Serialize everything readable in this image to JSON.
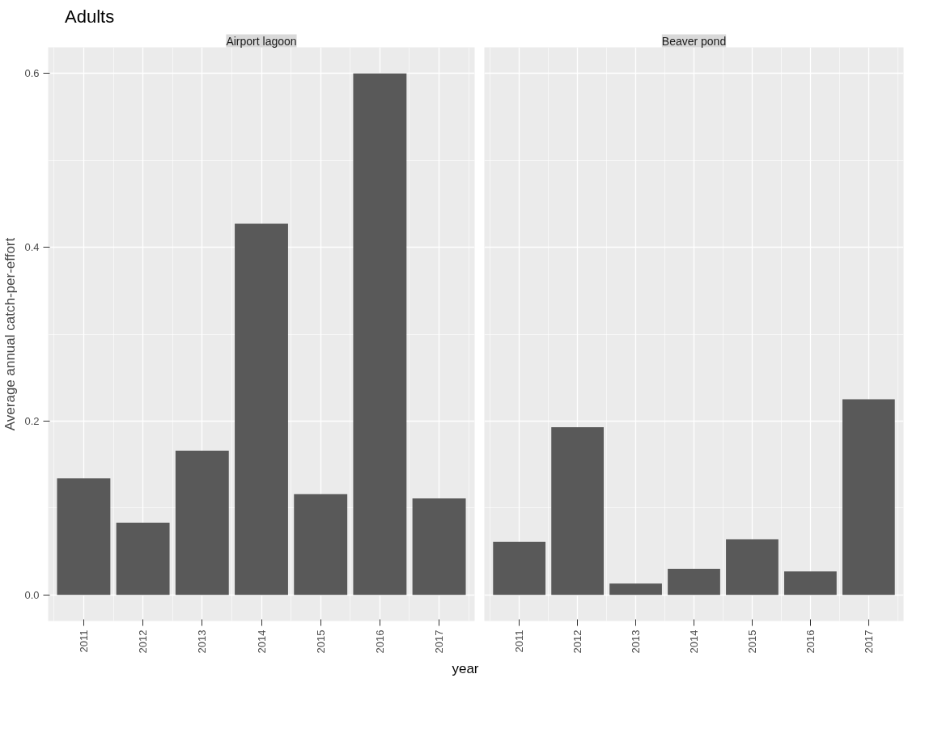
{
  "chart_data": [
    {
      "type": "bar",
      "title": "Adults",
      "subtitle": "Airport lagoon",
      "xlabel": "year",
      "ylabel": "Average annual catch-per-effort",
      "categories": [
        "2011",
        "2012",
        "2013",
        "2014",
        "2015",
        "2016",
        "2017"
      ],
      "values": [
        0.134,
        0.083,
        0.166,
        0.427,
        0.116,
        0.6,
        0.111
      ],
      "color": "#595959",
      "ylim": [
        -0.03,
        0.63
      ],
      "yticks": [
        {
          "value": 0,
          "label": "0.0"
        },
        {
          "value": 0.2,
          "label": "0.2"
        },
        {
          "value": 0.4,
          "label": "0.4"
        },
        {
          "value": 0.6,
          "label": "0.6"
        }
      ],
      "grid": true
    },
    {
      "type": "bar",
      "subtitle": "Beaver pond",
      "categories": [
        "2011",
        "2012",
        "2013",
        "2014",
        "2015",
        "2016",
        "2017"
      ],
      "values": [
        0.061,
        0.193,
        0.013,
        0.03,
        0.064,
        0.027,
        0.225
      ],
      "color": "#595959",
      "ylim": [
        -0.03,
        0.63
      ],
      "yticks": [
        0,
        0.2,
        0.4,
        0.6
      ],
      "grid": true,
      "tick_labels": "x"
    }
  ]
}
